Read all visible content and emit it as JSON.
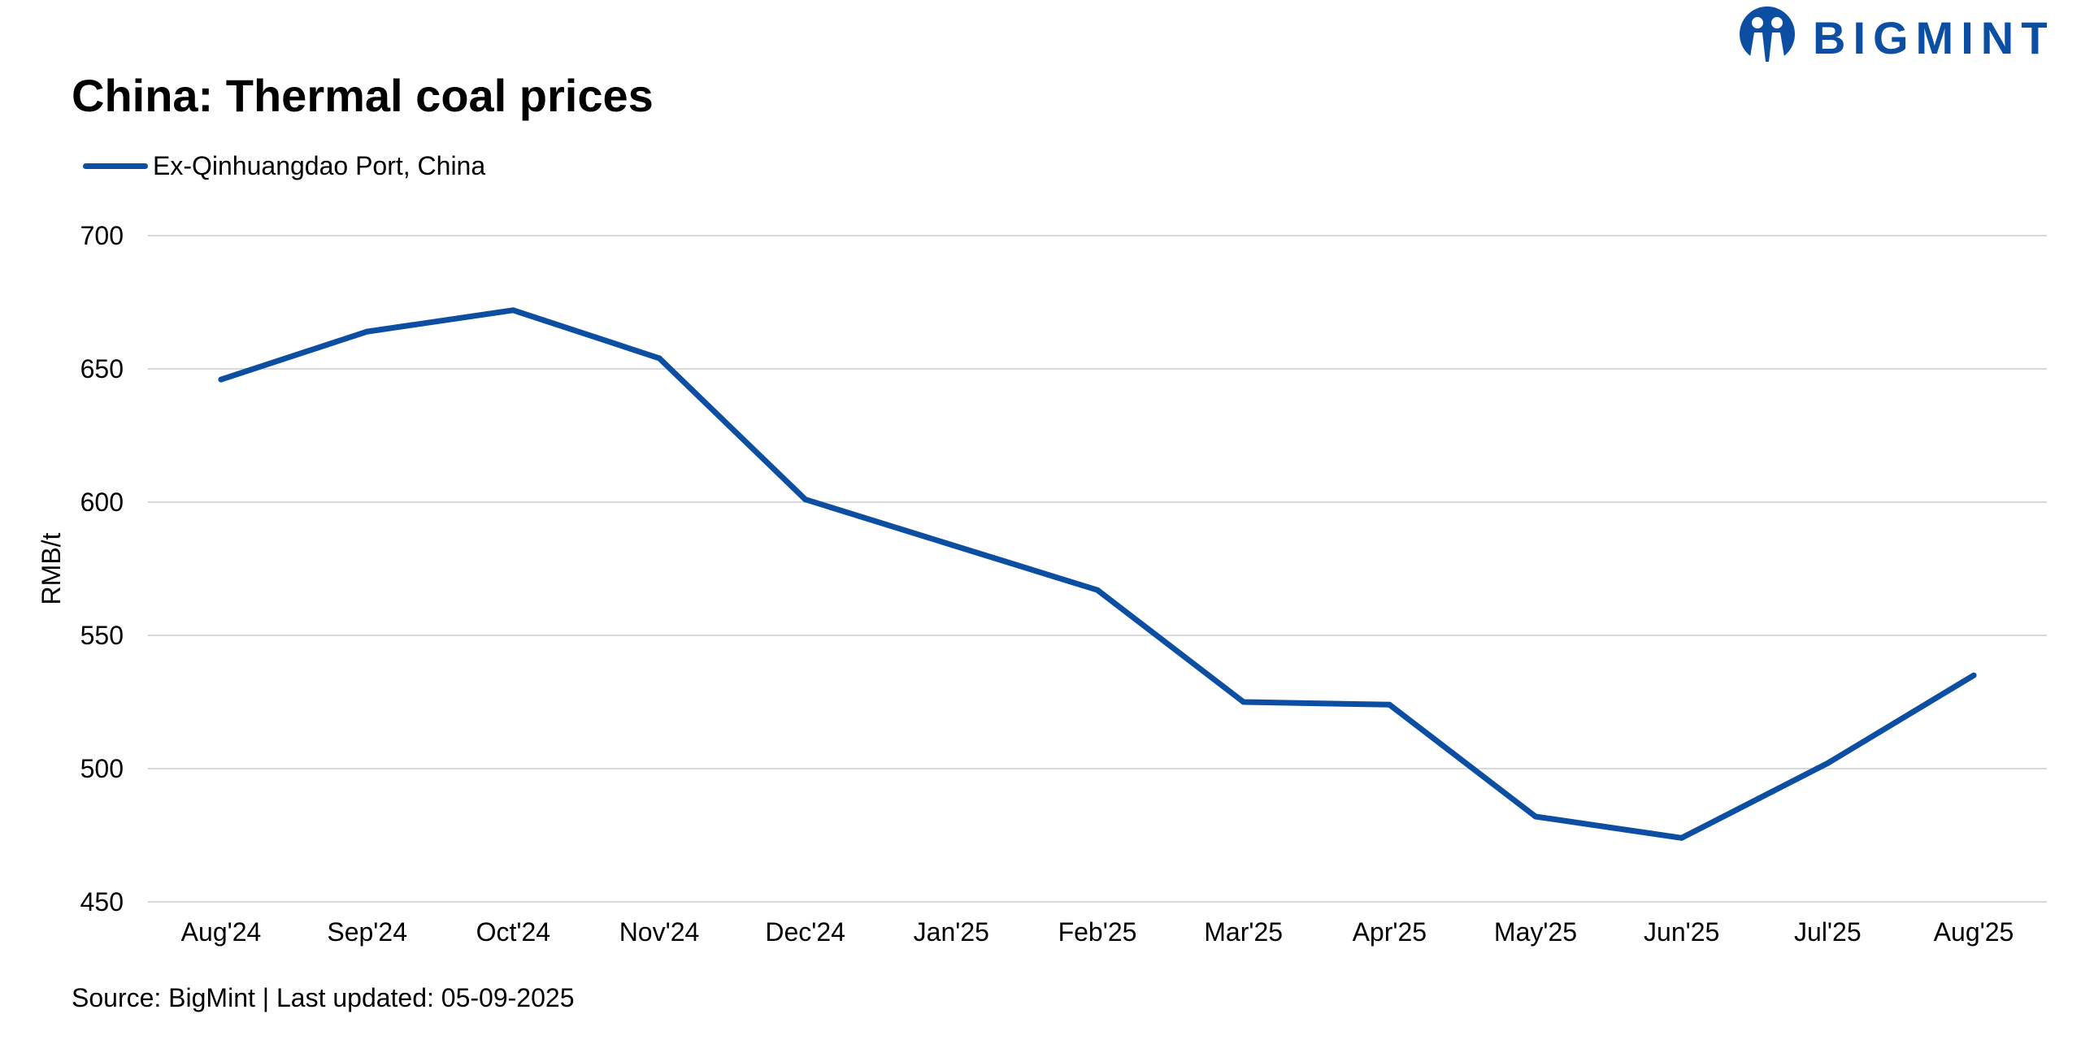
{
  "brand": {
    "name": "BIGMINT",
    "color": "#0b4ea2"
  },
  "footer": {
    "source": "Source: BigMint | Last updated: 05-09-2025"
  },
  "chart_data": {
    "type": "line",
    "title": "China: Thermal coal prices",
    "xlabel": "",
    "ylabel": "RMB/t",
    "ylim": [
      450,
      700
    ],
    "yticks": [
      450,
      500,
      550,
      600,
      650,
      700
    ],
    "grid": true,
    "legend_position": "top-left",
    "categories": [
      "Aug'24",
      "Sep'24",
      "Oct'24",
      "Nov'24",
      "Dec'24",
      "Jan'25",
      "Feb'25",
      "Mar'25",
      "Apr'25",
      "May'25",
      "Jun'25",
      "Jul'25",
      "Aug'25"
    ],
    "series": [
      {
        "name": "Ex-Qinhuangdao Port, China",
        "color": "#0b4ea2",
        "values": [
          646,
          664,
          672,
          654,
          601,
          584,
          567,
          525,
          524,
          482,
          474,
          502,
          535
        ]
      }
    ]
  }
}
